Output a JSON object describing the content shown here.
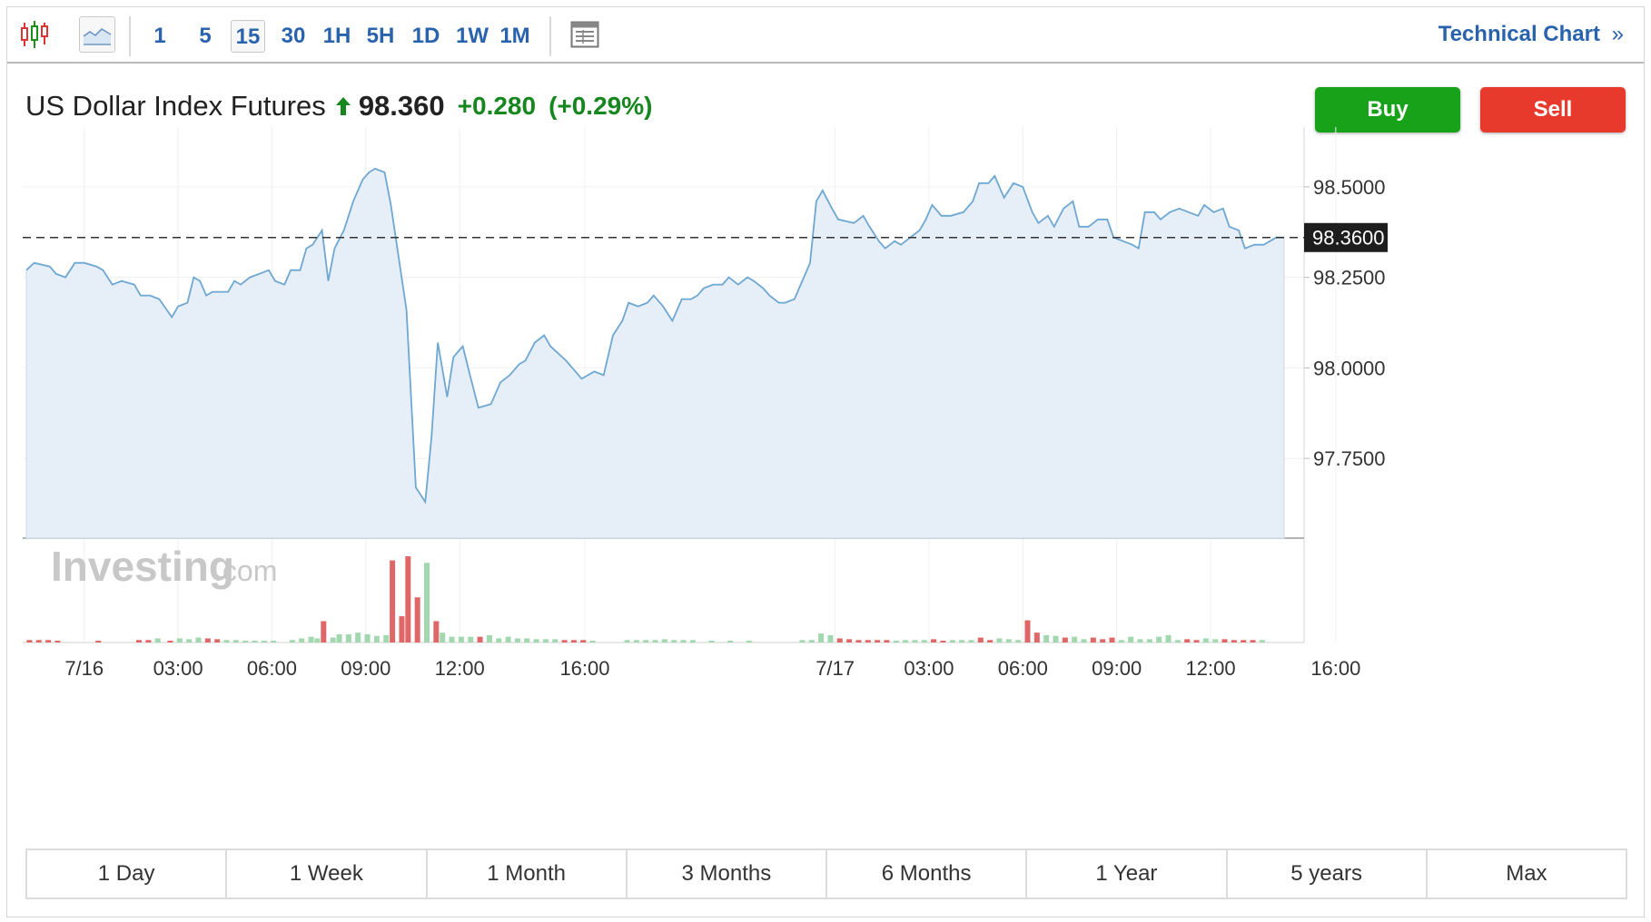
{
  "toolbar": {
    "intervals": [
      "1",
      "5",
      "15",
      "30",
      "1H",
      "5H",
      "1D",
      "1W",
      "1M"
    ],
    "selected_interval": "15",
    "technical_chart_label": "Technical Chart",
    "technical_chart_glyph": "»"
  },
  "instrument": {
    "name": "US Dollar Index Futures",
    "last": "98.360",
    "change": "+0.280",
    "change_pct": "(+0.29%)",
    "direction": "up"
  },
  "actions": {
    "buy_label": "Buy",
    "sell_label": "Sell"
  },
  "watermark": {
    "brand": "Investing",
    "suffix": ".com"
  },
  "colors": {
    "up": "#16861e",
    "line": "#6ea7d2",
    "area": "#e6eef7",
    "vol_up": "#a2d8b0",
    "vol_down": "#e06767",
    "buy": "#18a21a",
    "sell": "#e83a2c",
    "link": "#2a63ad"
  },
  "ranges": [
    "1 Day",
    "1 Week",
    "1 Month",
    "3 Months",
    "6 Months",
    "1 Year",
    "5 years",
    "Max"
  ],
  "chart_data": {
    "type": "area",
    "x_tick_labels": [
      "7/16",
      "03:00",
      "06:00",
      "09:00",
      "12:00",
      "16:00",
      "7/17",
      "03:00",
      "06:00",
      "09:00",
      "12:00",
      "16:00"
    ],
    "x_tick_hours": [
      0,
      3,
      6,
      9,
      12,
      16,
      24,
      27,
      30,
      33,
      36,
      40
    ],
    "y_tick_labels": [
      "98.5000",
      "98.2500",
      "98.0000",
      "97.7500"
    ],
    "y_ticks": [
      98.5,
      98.25,
      98.0,
      97.75
    ],
    "ylim": [
      97.53,
      98.64
    ],
    "xlim": [
      -1.85,
      38.35
    ],
    "last_value": 98.36,
    "last_value_label": "98.3600",
    "grid": true,
    "series": [
      {
        "values": [
          [
            -1.85,
            98.27
          ],
          [
            -1.6,
            98.29
          ],
          [
            -1.1,
            98.28
          ],
          [
            -0.9,
            98.26
          ],
          [
            -0.6,
            98.25
          ],
          [
            -0.3,
            98.29
          ],
          [
            0.0,
            98.29
          ],
          [
            0.4,
            98.28
          ],
          [
            0.6,
            98.27
          ],
          [
            0.9,
            98.23
          ],
          [
            1.2,
            98.24
          ],
          [
            1.6,
            98.23
          ],
          [
            1.8,
            98.2
          ],
          [
            2.1,
            98.2
          ],
          [
            2.4,
            98.19
          ],
          [
            2.8,
            98.14
          ],
          [
            3.0,
            98.17
          ],
          [
            3.3,
            98.18
          ],
          [
            3.5,
            98.25
          ],
          [
            3.7,
            98.24
          ],
          [
            3.9,
            98.2
          ],
          [
            4.1,
            98.21
          ],
          [
            4.6,
            98.21
          ],
          [
            4.8,
            98.24
          ],
          [
            5.0,
            98.23
          ],
          [
            5.3,
            98.25
          ],
          [
            5.6,
            98.26
          ],
          [
            5.9,
            98.27
          ],
          [
            6.1,
            98.24
          ],
          [
            6.4,
            98.23
          ],
          [
            6.6,
            98.27
          ],
          [
            6.9,
            98.27
          ],
          [
            7.1,
            98.33
          ],
          [
            7.3,
            98.34
          ],
          [
            7.6,
            98.38
          ],
          [
            7.8,
            98.24
          ],
          [
            8.0,
            98.33
          ],
          [
            8.3,
            98.38
          ],
          [
            8.6,
            98.46
          ],
          [
            8.9,
            98.52
          ],
          [
            9.1,
            98.54
          ],
          [
            9.3,
            98.55
          ],
          [
            9.6,
            98.54
          ],
          [
            9.8,
            98.45
          ],
          [
            10.3,
            98.16
          ],
          [
            10.6,
            97.67
          ],
          [
            10.9,
            97.63
          ],
          [
            11.1,
            97.81
          ],
          [
            11.3,
            98.07
          ],
          [
            11.6,
            97.92
          ],
          [
            11.8,
            98.03
          ],
          [
            12.1,
            98.06
          ],
          [
            12.3,
            97.99
          ],
          [
            12.6,
            97.89
          ],
          [
            13.0,
            97.9
          ],
          [
            13.3,
            97.96
          ],
          [
            13.6,
            97.98
          ],
          [
            13.9,
            98.01
          ],
          [
            14.1,
            98.02
          ],
          [
            14.4,
            98.07
          ],
          [
            14.7,
            98.09
          ],
          [
            14.9,
            98.06
          ],
          [
            15.4,
            98.02
          ],
          [
            15.9,
            97.97
          ],
          [
            16.3,
            97.99
          ],
          [
            16.6,
            97.98
          ],
          [
            16.9,
            98.09
          ],
          [
            17.2,
            98.13
          ],
          [
            17.4,
            98.18
          ],
          [
            17.7,
            98.17
          ],
          [
            18.0,
            98.18
          ],
          [
            18.2,
            98.2
          ],
          [
            18.5,
            98.17
          ],
          [
            18.8,
            98.13
          ],
          [
            19.1,
            98.19
          ],
          [
            19.4,
            98.19
          ],
          [
            19.6,
            98.2
          ],
          [
            19.8,
            98.22
          ],
          [
            20.1,
            98.23
          ],
          [
            20.4,
            98.23
          ],
          [
            20.6,
            98.25
          ],
          [
            20.9,
            98.23
          ],
          [
            21.2,
            98.25
          ],
          [
            21.4,
            98.24
          ],
          [
            21.7,
            98.22
          ],
          [
            21.9,
            98.2
          ],
          [
            22.2,
            98.18
          ],
          [
            22.4,
            98.18
          ],
          [
            22.7,
            98.19
          ],
          [
            22.9,
            98.23
          ],
          [
            23.2,
            98.29
          ],
          [
            23.4,
            98.46
          ],
          [
            23.6,
            98.49
          ],
          [
            23.9,
            98.44
          ],
          [
            24.1,
            98.41
          ],
          [
            24.6,
            98.4
          ],
          [
            24.9,
            98.42
          ],
          [
            25.1,
            98.39
          ],
          [
            25.4,
            98.35
          ],
          [
            25.6,
            98.33
          ],
          [
            25.9,
            98.35
          ],
          [
            26.1,
            98.34
          ],
          [
            26.4,
            98.36
          ],
          [
            26.7,
            98.38
          ],
          [
            26.9,
            98.41
          ],
          [
            27.1,
            98.45
          ],
          [
            27.4,
            98.42
          ],
          [
            27.7,
            98.42
          ],
          [
            28.1,
            98.43
          ],
          [
            28.4,
            98.46
          ],
          [
            28.6,
            98.51
          ],
          [
            28.9,
            98.51
          ],
          [
            29.1,
            98.53
          ],
          [
            29.4,
            98.47
          ],
          [
            29.7,
            98.51
          ],
          [
            30.0,
            98.5
          ],
          [
            30.3,
            98.43
          ],
          [
            30.5,
            98.4
          ],
          [
            30.8,
            98.42
          ],
          [
            31.0,
            98.39
          ],
          [
            31.3,
            98.44
          ],
          [
            31.6,
            98.46
          ],
          [
            31.8,
            98.39
          ],
          [
            32.1,
            98.39
          ],
          [
            32.4,
            98.41
          ],
          [
            32.7,
            98.41
          ],
          [
            32.9,
            98.36
          ],
          [
            33.2,
            98.35
          ],
          [
            33.5,
            98.34
          ],
          [
            33.7,
            98.33
          ],
          [
            33.9,
            98.43
          ],
          [
            34.2,
            98.43
          ],
          [
            34.4,
            98.41
          ],
          [
            34.7,
            98.43
          ],
          [
            35.0,
            98.44
          ],
          [
            35.3,
            98.43
          ],
          [
            35.6,
            98.42
          ],
          [
            35.8,
            98.45
          ],
          [
            36.1,
            98.43
          ],
          [
            36.4,
            98.44
          ],
          [
            36.6,
            98.39
          ],
          [
            36.9,
            98.38
          ],
          [
            37.1,
            98.33
          ],
          [
            37.4,
            98.34
          ],
          [
            37.7,
            98.34
          ],
          [
            38.1,
            98.36
          ],
          [
            38.35,
            98.36
          ]
        ]
      }
    ],
    "volume": {
      "bars": [
        [
          -1.75,
          0.3,
          "d"
        ],
        [
          -1.45,
          0.3,
          "d"
        ],
        [
          -1.15,
          0.3,
          "d"
        ],
        [
          -0.85,
          0.2,
          "d"
        ],
        [
          0.45,
          0.2,
          "d"
        ],
        [
          1.75,
          0.3,
          "d"
        ],
        [
          2.05,
          0.3,
          "d"
        ],
        [
          2.35,
          0.5,
          "u"
        ],
        [
          2.75,
          0.2,
          "d"
        ],
        [
          3.05,
          0.5,
          "u"
        ],
        [
          3.35,
          0.4,
          "u"
        ],
        [
          3.65,
          0.6,
          "u"
        ],
        [
          3.95,
          0.5,
          "d"
        ],
        [
          4.25,
          0.4,
          "d"
        ],
        [
          4.55,
          0.3,
          "u"
        ],
        [
          4.85,
          0.3,
          "u"
        ],
        [
          5.15,
          0.2,
          "u"
        ],
        [
          5.45,
          0.2,
          "u"
        ],
        [
          5.75,
          0.2,
          "u"
        ],
        [
          6.05,
          0.2,
          "u"
        ],
        [
          6.65,
          0.3,
          "u"
        ],
        [
          6.95,
          0.5,
          "u"
        ],
        [
          7.25,
          0.7,
          "u"
        ],
        [
          7.45,
          0.5,
          "u"
        ],
        [
          7.65,
          2.6,
          "d"
        ],
        [
          7.95,
          0.6,
          "u"
        ],
        [
          8.15,
          1.0,
          "u"
        ],
        [
          8.45,
          1.0,
          "u"
        ],
        [
          8.75,
          1.2,
          "u"
        ],
        [
          9.05,
          1.0,
          "u"
        ],
        [
          9.35,
          0.8,
          "u"
        ],
        [
          9.65,
          0.9,
          "u"
        ],
        [
          9.85,
          10.0,
          "d"
        ],
        [
          10.15,
          3.2,
          "d"
        ],
        [
          10.35,
          10.5,
          "d"
        ],
        [
          10.65,
          5.5,
          "d"
        ],
        [
          10.95,
          9.7,
          "u"
        ],
        [
          11.25,
          2.6,
          "d"
        ],
        [
          11.45,
          1.2,
          "u"
        ],
        [
          11.75,
          0.7,
          "u"
        ],
        [
          12.05,
          0.7,
          "u"
        ],
        [
          12.35,
          0.7,
          "u"
        ],
        [
          12.65,
          0.7,
          "d"
        ],
        [
          12.95,
          0.9,
          "u"
        ],
        [
          13.25,
          0.5,
          "u"
        ],
        [
          13.55,
          0.7,
          "u"
        ],
        [
          13.85,
          0.5,
          "u"
        ],
        [
          14.15,
          0.5,
          "u"
        ],
        [
          14.45,
          0.4,
          "u"
        ],
        [
          14.75,
          0.4,
          "u"
        ],
        [
          15.05,
          0.4,
          "u"
        ],
        [
          15.35,
          0.3,
          "d"
        ],
        [
          15.65,
          0.3,
          "d"
        ],
        [
          15.95,
          0.3,
          "d"
        ],
        [
          16.25,
          0.2,
          "u"
        ],
        [
          17.35,
          0.3,
          "u"
        ],
        [
          17.65,
          0.3,
          "u"
        ],
        [
          17.95,
          0.3,
          "u"
        ],
        [
          18.25,
          0.3,
          "u"
        ],
        [
          18.55,
          0.4,
          "u"
        ],
        [
          18.85,
          0.3,
          "u"
        ],
        [
          19.15,
          0.3,
          "u"
        ],
        [
          19.45,
          0.3,
          "u"
        ],
        [
          20.05,
          0.2,
          "u"
        ],
        [
          20.65,
          0.2,
          "u"
        ],
        [
          21.25,
          0.2,
          "u"
        ],
        [
          22.95,
          0.3,
          "u"
        ],
        [
          23.25,
          0.3,
          "u"
        ],
        [
          23.55,
          1.1,
          "u"
        ],
        [
          23.85,
          0.9,
          "u"
        ],
        [
          24.15,
          0.5,
          "d"
        ],
        [
          24.45,
          0.4,
          "d"
        ],
        [
          24.75,
          0.3,
          "d"
        ],
        [
          25.05,
          0.3,
          "d"
        ],
        [
          25.35,
          0.3,
          "d"
        ],
        [
          25.65,
          0.3,
          "d"
        ],
        [
          25.95,
          0.2,
          "u"
        ],
        [
          26.25,
          0.3,
          "u"
        ],
        [
          26.55,
          0.3,
          "u"
        ],
        [
          26.85,
          0.3,
          "u"
        ],
        [
          27.15,
          0.4,
          "d"
        ],
        [
          27.45,
          0.2,
          "d"
        ],
        [
          27.75,
          0.3,
          "u"
        ],
        [
          28.05,
          0.3,
          "u"
        ],
        [
          28.35,
          0.3,
          "u"
        ],
        [
          28.65,
          0.6,
          "d"
        ],
        [
          28.95,
          0.3,
          "d"
        ],
        [
          29.25,
          0.5,
          "u"
        ],
        [
          29.55,
          0.4,
          "u"
        ],
        [
          29.85,
          0.3,
          "u"
        ],
        [
          30.15,
          2.7,
          "d"
        ],
        [
          30.45,
          1.2,
          "d"
        ],
        [
          30.75,
          0.9,
          "u"
        ],
        [
          31.05,
          0.8,
          "u"
        ],
        [
          31.35,
          0.6,
          "d"
        ],
        [
          31.65,
          0.7,
          "u"
        ],
        [
          31.95,
          0.4,
          "u"
        ],
        [
          32.25,
          0.6,
          "d"
        ],
        [
          32.55,
          0.4,
          "d"
        ],
        [
          32.85,
          0.6,
          "d"
        ],
        [
          33.15,
          0.3,
          "u"
        ],
        [
          33.45,
          0.7,
          "u"
        ],
        [
          33.75,
          0.4,
          "u"
        ],
        [
          34.05,
          0.4,
          "u"
        ],
        [
          34.35,
          0.7,
          "u"
        ],
        [
          34.65,
          0.9,
          "u"
        ],
        [
          34.95,
          0.3,
          "u"
        ],
        [
          35.25,
          0.4,
          "d"
        ],
        [
          35.55,
          0.3,
          "d"
        ],
        [
          35.85,
          0.5,
          "u"
        ],
        [
          36.15,
          0.4,
          "u"
        ],
        [
          36.45,
          0.4,
          "d"
        ],
        [
          36.75,
          0.3,
          "d"
        ],
        [
          37.05,
          0.3,
          "d"
        ],
        [
          37.35,
          0.3,
          "d"
        ],
        [
          37.65,
          0.3,
          "u"
        ]
      ]
    }
  }
}
